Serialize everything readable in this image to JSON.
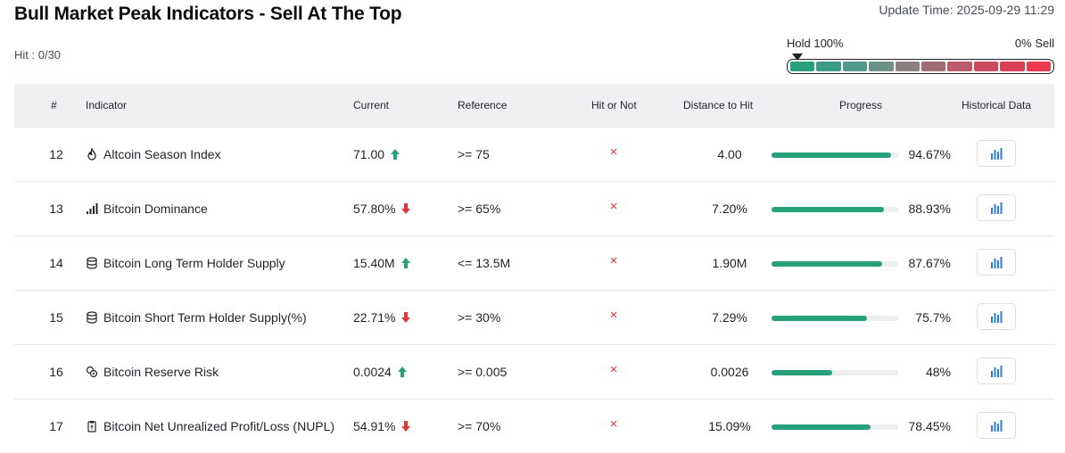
{
  "title": "Bull Market Peak Indicators - Sell At The Top",
  "update_time": "Update Time: 2025-09-29 11:29",
  "hit_count": "Hit : 0/30",
  "meter": {
    "left_label": "Hold 100%",
    "right_label": "0% Sell",
    "segment_colors": [
      "#26a17b",
      "#3a9e84",
      "#53998a",
      "#6c8f86",
      "#8a807e",
      "#a26c74",
      "#bb5a69",
      "#cc4c5f",
      "#dd4056",
      "#ee3a4d"
    ]
  },
  "colors": {
    "up": "#26a17b",
    "down": "#e0363b",
    "progress": "#26a17b",
    "chart_icon": "#2f7de1"
  },
  "table": {
    "headers": {
      "num": "#",
      "indicator": "Indicator",
      "current": "Current",
      "reference": "Reference",
      "hit": "Hit or Not",
      "distance": "Distance to Hit",
      "progress": "Progress",
      "history": "Historical Data"
    },
    "rows": [
      {
        "num": "12",
        "icon": "fire-icon",
        "name": "Altcoin Season Index",
        "current": "71.00",
        "trend": "up",
        "reference": ">= 75",
        "hit": "×",
        "distance": "4.00",
        "progress": 0.9467,
        "progress_text": "94.67%"
      },
      {
        "num": "13",
        "icon": "signal-bars-icon",
        "name": "Bitcoin Dominance",
        "current": "57.80%",
        "trend": "down",
        "reference": ">= 65%",
        "hit": "×",
        "distance": "7.20%",
        "progress": 0.8893,
        "progress_text": "88.93%"
      },
      {
        "num": "14",
        "icon": "database-icon",
        "name": "Bitcoin Long Term Holder Supply",
        "current": "15.40M",
        "trend": "up",
        "reference": "<= 13.5M",
        "hit": "×",
        "distance": "1.90M",
        "progress": 0.8767,
        "progress_text": "87.67%"
      },
      {
        "num": "15",
        "icon": "database-icon",
        "name": "Bitcoin Short Term Holder Supply(%)",
        "current": "22.71%",
        "trend": "down",
        "reference": ">= 30%",
        "hit": "×",
        "distance": "7.29%",
        "progress": 0.757,
        "progress_text": "75.7%"
      },
      {
        "num": "16",
        "icon": "coins-shield-icon",
        "name": "Bitcoin Reserve Risk",
        "current": "0.0024",
        "trend": "up",
        "reference": ">= 0.005",
        "hit": "×",
        "distance": "0.0026",
        "progress": 0.48,
        "progress_text": "48%"
      },
      {
        "num": "17",
        "icon": "clipboard-icon",
        "name": "Bitcoin Net Unrealized Profit/Loss (NUPL)",
        "current": "54.91%",
        "trend": "down",
        "reference": ">= 70%",
        "hit": "×",
        "distance": "15.09%",
        "progress": 0.7845,
        "progress_text": "78.45%"
      }
    ]
  }
}
